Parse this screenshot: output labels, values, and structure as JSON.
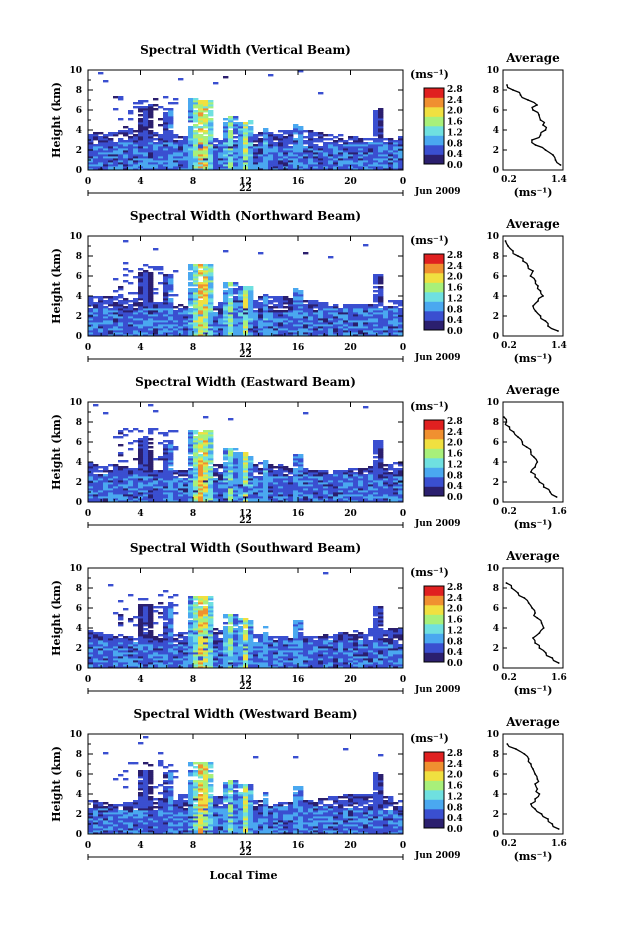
{
  "figure": {
    "colorbar_unit": "(ms⁻¹)",
    "colorbar_ticks": [
      "2.8",
      "2.4",
      "2.0",
      "1.6",
      "1.2",
      "0.8",
      "0.4",
      "0.0"
    ],
    "colors": [
      "#2b1f6e",
      "#3a4fd0",
      "#4aa8f0",
      "#6fe0e0",
      "#a8f07a",
      "#f0e040",
      "#f09030",
      "#e02020"
    ],
    "x_ticks": [
      "0",
      "4",
      "8",
      "12",
      "16",
      "20",
      "0"
    ],
    "y_ticks": [
      "0",
      "2",
      "4",
      "6",
      "8",
      "10"
    ],
    "ylabel": "Height (km)",
    "date_label": "22",
    "month_label": "Jun 2009",
    "xlabel": "Local Time",
    "avg_title": "Average",
    "avg_unit": "(ms⁻¹)"
  },
  "chart_data": [
    {
      "type": "heatmap",
      "title": "Spectral Width (Vertical Beam)",
      "xlim": [
        0,
        24
      ],
      "ylim": [
        0,
        10
      ],
      "clim": [
        0.0,
        3.0
      ],
      "avg_profile": {
        "xlim": [
          0.2,
          1.4
        ],
        "xticks": [
          "0.2",
          "1.4"
        ],
        "height": [
          0.5,
          1,
          1.5,
          2,
          2.5,
          3,
          3.5,
          4,
          4.5,
          5,
          5.5,
          6,
          6.5,
          7,
          7.5,
          8,
          8.5
        ],
        "value": [
          1.35,
          1.25,
          1.2,
          1.05,
          0.85,
          0.78,
          0.95,
          1.05,
          1.0,
          0.95,
          0.92,
          0.8,
          0.88,
          0.7,
          0.55,
          0.4,
          0.28
        ]
      }
    },
    {
      "type": "heatmap",
      "title": "Spectral Width (Northward Beam)",
      "xlim": [
        0,
        24
      ],
      "ylim": [
        0,
        10
      ],
      "clim": [
        0.0,
        3.0
      ],
      "avg_profile": {
        "xlim": [
          0.2,
          1.4
        ],
        "xticks": [
          "0.2",
          "1.4"
        ],
        "height": [
          0.5,
          1,
          1.5,
          2,
          2.5,
          3,
          3.5,
          4,
          4.5,
          5,
          5.5,
          6,
          6.5,
          7,
          7.5,
          8,
          8.5,
          9,
          9.5
        ],
        "value": [
          1.3,
          1.1,
          1.05,
          0.95,
          0.85,
          0.8,
          0.9,
          1.0,
          0.95,
          0.9,
          0.85,
          0.75,
          0.8,
          0.7,
          0.6,
          0.5,
          0.4,
          0.3,
          0.25
        ]
      }
    },
    {
      "type": "heatmap",
      "title": "Spectral Width (Eastward Beam)",
      "xlim": [
        0,
        24
      ],
      "ylim": [
        0,
        10
      ],
      "clim": [
        0.0,
        3.0
      ],
      "avg_profile": {
        "xlim": [
          0.2,
          1.6
        ],
        "xticks": [
          "0.2",
          "1.6"
        ],
        "height": [
          0.5,
          1,
          1.5,
          2,
          2.5,
          3,
          3.5,
          4,
          4.5,
          5,
          5.5,
          6,
          6.5,
          7,
          7.5,
          8,
          8.5
        ],
        "value": [
          1.45,
          1.3,
          1.15,
          1.05,
          0.95,
          0.85,
          0.95,
          1.0,
          0.92,
          0.85,
          0.75,
          0.65,
          0.55,
          0.45,
          0.35,
          0.28,
          0.22
        ]
      }
    },
    {
      "type": "heatmap",
      "title": "Spectral Width (Southward Beam)",
      "xlim": [
        0,
        24
      ],
      "ylim": [
        0,
        10
      ],
      "clim": [
        0.0,
        3.0
      ],
      "avg_profile": {
        "xlim": [
          0.2,
          1.6
        ],
        "xticks": [
          "0.2",
          "1.6"
        ],
        "height": [
          0.5,
          1,
          1.5,
          2,
          2.5,
          3,
          3.5,
          4,
          4.5,
          5,
          5.5,
          6,
          6.5,
          7,
          7.5,
          8,
          8.5
        ],
        "value": [
          1.5,
          1.35,
          1.2,
          1.05,
          0.95,
          0.9,
          1.05,
          1.15,
          1.1,
          1.0,
          0.95,
          0.88,
          0.8,
          0.7,
          0.55,
          0.4,
          0.28
        ]
      }
    },
    {
      "type": "heatmap",
      "title": "Spectral Width (Westward Beam)",
      "xlim": [
        0,
        24
      ],
      "ylim": [
        0,
        10
      ],
      "clim": [
        0.0,
        3.0
      ],
      "avg_profile": {
        "xlim": [
          0.2,
          1.6
        ],
        "xticks": [
          "0.2",
          "1.6"
        ],
        "height": [
          0.5,
          1,
          1.5,
          2,
          2.5,
          3,
          3.5,
          4,
          4.5,
          5,
          5.5,
          6,
          6.5,
          7,
          7.5,
          8,
          8.5,
          9
        ],
        "value": [
          1.5,
          1.35,
          1.25,
          1.1,
          0.95,
          0.85,
          0.95,
          1.05,
          1.0,
          0.95,
          1.0,
          0.95,
          0.9,
          0.85,
          0.8,
          0.7,
          0.5,
          0.3
        ]
      }
    }
  ]
}
